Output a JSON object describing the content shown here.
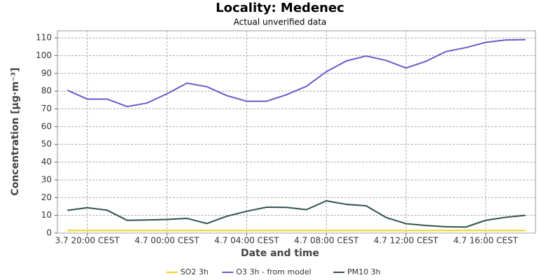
{
  "chart_data": {
    "type": "line",
    "title": "Locality: Medenec",
    "subtitle": "Actual unverified data",
    "x_label": "Date and time",
    "y_label": "Concentration [µg·m⁻³]",
    "x": [
      "3.7 19:00",
      "3.7 20:00",
      "3.7 21:00",
      "3.7 22:00",
      "3.7 23:00",
      "4.7 00:00",
      "4.7 01:00",
      "4.7 02:00",
      "4.7 03:00",
      "4.7 04:00",
      "4.7 05:00",
      "4.7 06:00",
      "4.7 07:00",
      "4.7 08:00",
      "4.7 09:00",
      "4.7 10:00",
      "4.7 11:00",
      "4.7 12:00",
      "4.7 13:00",
      "4.7 14:00",
      "4.7 15:00",
      "4.7 16:00",
      "4.7 17:00",
      "4.7 18:00"
    ],
    "xlim": [
      "3.7 18:30",
      "4.7 18:30"
    ],
    "xticks": [
      {
        "value": "3.7 20:00",
        "label": "3.7 20:00 CEST"
      },
      {
        "value": "4.7 00:00",
        "label": "4.7 00:00 CEST"
      },
      {
        "value": "4.7 04:00",
        "label": "4.7 04:00 CEST"
      },
      {
        "value": "4.7 08:00",
        "label": "4.7 08:00 CEST"
      },
      {
        "value": "4.7 12:00",
        "label": "4.7 12:00 CEST"
      },
      {
        "value": "4.7 16:00",
        "label": "4.7 16:00 CEST"
      }
    ],
    "ylim": [
      0,
      114
    ],
    "yticks": [
      0,
      10,
      20,
      30,
      40,
      50,
      60,
      70,
      80,
      90,
      100,
      110
    ],
    "grid": true,
    "legend": "bottom",
    "series": [
      {
        "name": "SO2 3h",
        "color": "#f2d31c",
        "values": [
          1.5,
          1.5,
          1.5,
          1.5,
          1.5,
          1.5,
          1.5,
          1.5,
          1.5,
          1.5,
          1.5,
          1.5,
          1.5,
          1.5,
          1.5,
          1.5,
          1.5,
          1.5,
          1.5,
          1.5,
          1.5,
          1.5,
          1.5,
          1.5
        ]
      },
      {
        "name": "O3 3h - from model",
        "color": "#6a5acd",
        "values": [
          80.5,
          75.5,
          75.5,
          71.3,
          73.3,
          78.5,
          84.5,
          82.5,
          77.5,
          74.3,
          74.3,
          78,
          82.7,
          91,
          97,
          99.8,
          97.3,
          93,
          96.8,
          102.3,
          104.5,
          107.5,
          108.8,
          109
        ]
      },
      {
        "name": "PM10 3h",
        "color": "#2f4f4f",
        "values": [
          12.8,
          14.3,
          12.9,
          7.2,
          7.4,
          7.7,
          8.3,
          5.4,
          9.5,
          12.3,
          14.6,
          14.5,
          13.2,
          18.2,
          16.2,
          15.4,
          8.8,
          5.3,
          4.3,
          3.6,
          3.4,
          7.2,
          8.9,
          10
        ]
      }
    ]
  }
}
